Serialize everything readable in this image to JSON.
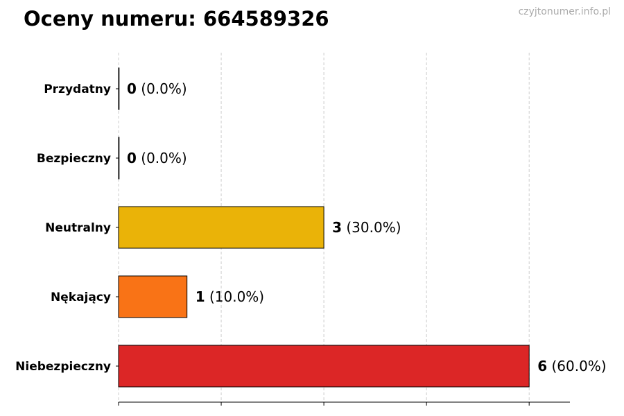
{
  "header": {
    "title": "Oceny numeru: 664589326",
    "watermark": "czyjtonumer.info.pl"
  },
  "chart_data": {
    "type": "bar",
    "orientation": "horizontal",
    "title": "Oceny numeru: 664589326",
    "categories": [
      "Przydatny",
      "Bezpieczny",
      "Neutralny",
      "Nękający",
      "Niebezpieczny"
    ],
    "values": [
      0,
      0,
      3,
      1,
      6
    ],
    "percent_labels": [
      "(0.0%)",
      "(0.0%)",
      "(30.0%)",
      "(10.0%)",
      "(60.0%)"
    ],
    "colors": [
      "#2db83d",
      "#2471a3",
      "#eab308",
      "#f97316",
      "#dc2626"
    ],
    "xlim": [
      0,
      6.6
    ],
    "grid": "vertical dashed",
    "legend": "none",
    "xlabel": "",
    "ylabel": ""
  }
}
